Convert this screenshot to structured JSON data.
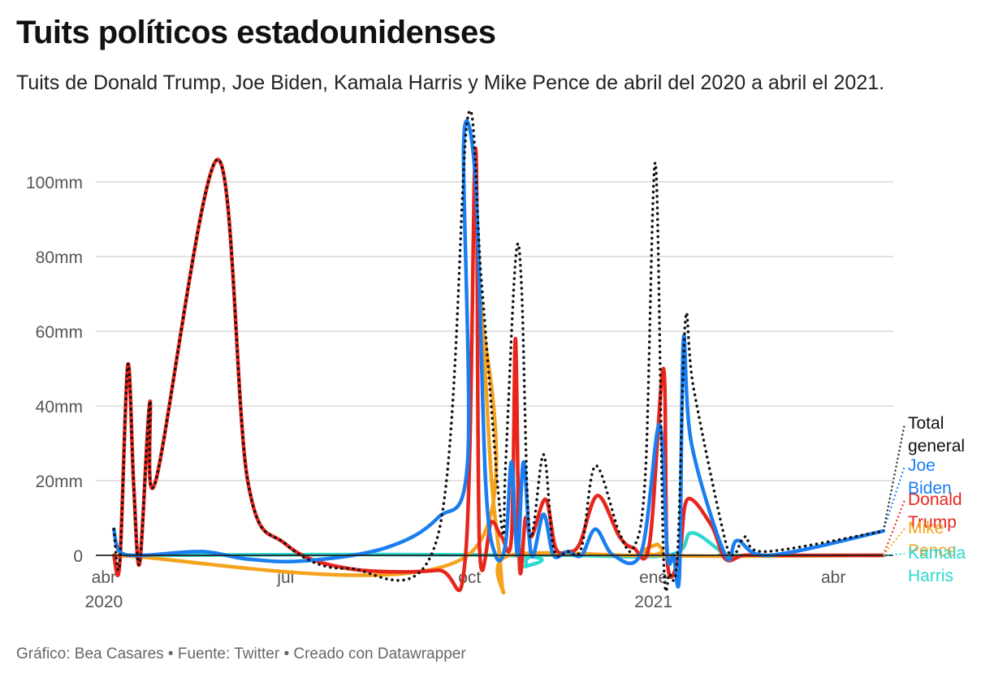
{
  "title": "Tuits políticos estadounidenses",
  "subtitle": "Tuits de Donald Trump, Joe Biden, Kamala Harris y Mike Pence de abril del 2020 a abril el 2021.",
  "footer": "Gráfico: Bea Casares • Fuente: Twitter • Creado con Datawrapper",
  "chart_data": {
    "type": "line",
    "x_type": "date",
    "y_unit": "mm",
    "ylim": [
      0,
      110000
    ],
    "yticks": [
      {
        "value": 0,
        "label": "0"
      },
      {
        "value": 20000,
        "label": "20mm"
      },
      {
        "value": 40000,
        "label": "40mm"
      },
      {
        "value": 60000,
        "label": "60mm"
      },
      {
        "value": 80000,
        "label": "80mm"
      },
      {
        "value": 100000,
        "label": "100mm"
      }
    ],
    "xticks": [
      {
        "date": "2020-04-01",
        "label": "abr",
        "sublabel": "2020"
      },
      {
        "date": "2020-07-01",
        "label": "jul",
        "sublabel": ""
      },
      {
        "date": "2020-10-01",
        "label": "oct",
        "sublabel": ""
      },
      {
        "date": "2021-01-01",
        "label": "ene",
        "sublabel": "2021"
      },
      {
        "date": "2021-04-01",
        "label": "abr",
        "sublabel": ""
      }
    ],
    "xlim": [
      "2020-03-28",
      "2021-05-01"
    ],
    "grid": true,
    "legend": "right-end labels",
    "series": [
      {
        "name": "Donald Trump",
        "legend_lines": [
          "Donald",
          "Trump"
        ],
        "color": "#e8251c",
        "style": "solid",
        "points": [
          [
            "2020-04-06",
            0
          ],
          [
            "2020-04-09",
            -2000
          ],
          [
            "2020-04-13",
            51000
          ],
          [
            "2020-04-16",
            18000
          ],
          [
            "2020-04-19",
            -2000
          ],
          [
            "2020-04-24",
            41000
          ],
          [
            "2020-04-27",
            20000
          ],
          [
            "2020-05-28",
            106000
          ],
          [
            "2020-06-12",
            20000
          ],
          [
            "2020-07-01",
            3000
          ],
          [
            "2020-08-01",
            -3500
          ],
          [
            "2020-09-15",
            -4000
          ],
          [
            "2020-09-29",
            0
          ],
          [
            "2020-10-04",
            109000
          ],
          [
            "2020-10-06",
            2000
          ],
          [
            "2020-10-12",
            9000
          ],
          [
            "2020-10-17",
            5000
          ],
          [
            "2020-10-22",
            5000
          ],
          [
            "2020-10-24",
            58000
          ],
          [
            "2020-10-26",
            -3000
          ],
          [
            "2020-10-29",
            10000
          ],
          [
            "2020-11-01",
            5000
          ],
          [
            "2020-11-08",
            15000
          ],
          [
            "2020-11-13",
            2000
          ],
          [
            "2020-11-19",
            1000
          ],
          [
            "2020-11-25",
            3000
          ],
          [
            "2020-12-04",
            16000
          ],
          [
            "2020-12-15",
            5000
          ],
          [
            "2020-12-22",
            2000
          ],
          [
            "2020-12-30",
            3000
          ],
          [
            "2021-01-06",
            50000
          ],
          [
            "2021-01-08",
            -2000
          ],
          [
            "2021-01-14",
            0
          ],
          [
            "2021-01-18",
            15000
          ],
          [
            "2021-01-30",
            8000
          ],
          [
            "2021-02-06",
            -1000
          ],
          [
            "2021-02-15",
            0
          ],
          [
            "2021-03-01",
            0
          ],
          [
            "2021-04-26",
            0
          ]
        ]
      },
      {
        "name": "Joe Biden",
        "legend_lines": [
          "Joe",
          "Biden"
        ],
        "color": "#1a7ef0",
        "style": "solid",
        "points": [
          [
            "2020-04-06",
            7000
          ],
          [
            "2020-04-09",
            1000
          ],
          [
            "2020-04-20",
            0
          ],
          [
            "2020-05-20",
            1000
          ],
          [
            "2020-06-12",
            -1000
          ],
          [
            "2020-07-10",
            -1500
          ],
          [
            "2020-08-20",
            2000
          ],
          [
            "2020-09-15",
            10000
          ],
          [
            "2020-09-30",
            25000
          ],
          [
            "2020-09-28",
            110000
          ],
          [
            "2020-10-04",
            100000
          ],
          [
            "2020-10-09",
            20000
          ],
          [
            "2020-10-14",
            0
          ],
          [
            "2020-10-19",
            3000
          ],
          [
            "2020-10-22",
            25000
          ],
          [
            "2020-10-25",
            0
          ],
          [
            "2020-10-28",
            25000
          ],
          [
            "2020-11-01",
            0
          ],
          [
            "2020-11-07",
            11000
          ],
          [
            "2020-11-12",
            0
          ],
          [
            "2020-11-19",
            1000
          ],
          [
            "2020-11-26",
            0
          ],
          [
            "2020-12-03",
            7000
          ],
          [
            "2020-12-12",
            0
          ],
          [
            "2020-12-26",
            1000
          ],
          [
            "2021-01-04",
            35000
          ],
          [
            "2021-01-08",
            0
          ],
          [
            "2021-01-11",
            0
          ],
          [
            "2021-01-14",
            -5000
          ],
          [
            "2021-01-16",
            58000
          ],
          [
            "2021-01-20",
            30000
          ],
          [
            "2021-02-06",
            0
          ],
          [
            "2021-02-12",
            4000
          ],
          [
            "2021-02-28",
            0
          ],
          [
            "2021-04-26",
            6500
          ]
        ]
      },
      {
        "name": "Mike Pence",
        "legend_lines": [
          "Mike",
          "Pence"
        ],
        "color": "#f5a21d",
        "style": "solid",
        "points": [
          [
            "2020-04-06",
            0
          ],
          [
            "2020-09-30",
            0
          ],
          [
            "2020-10-05",
            72000
          ],
          [
            "2020-10-12",
            20000
          ],
          [
            "2020-10-16",
            0
          ],
          [
            "2020-10-18",
            -10000
          ],
          [
            "2020-10-21",
            0
          ],
          [
            "2020-12-30",
            0
          ],
          [
            "2021-01-03",
            3000
          ],
          [
            "2021-01-05",
            0
          ],
          [
            "2021-04-26",
            0
          ]
        ]
      },
      {
        "name": "Kamala Harris",
        "legend_lines": [
          "Kamala",
          "Harris"
        ],
        "color": "#2cd9d1",
        "style": "solid",
        "points": [
          [
            "2020-04-06",
            0
          ],
          [
            "2020-10-20",
            0
          ],
          [
            "2020-10-29",
            -3000
          ],
          [
            "2020-11-05",
            0
          ],
          [
            "2021-01-08",
            0
          ],
          [
            "2021-01-20",
            6000
          ],
          [
            "2021-02-04",
            1000
          ],
          [
            "2021-02-10",
            0
          ],
          [
            "2021-04-26",
            0
          ]
        ]
      },
      {
        "name": "Total general",
        "legend_lines": [
          "Total",
          "general"
        ],
        "color": "#111111",
        "style": "dotted",
        "points": [
          [
            "2020-04-06",
            7000
          ],
          [
            "2020-04-09",
            -2000
          ],
          [
            "2020-04-13",
            51000
          ],
          [
            "2020-04-16",
            18000
          ],
          [
            "2020-04-19",
            -2000
          ],
          [
            "2020-04-24",
            41000
          ],
          [
            "2020-04-27",
            20000
          ],
          [
            "2020-05-28",
            106000
          ],
          [
            "2020-06-12",
            20000
          ],
          [
            "2020-07-01",
            3000
          ],
          [
            "2020-08-01",
            -3500
          ],
          [
            "2020-09-15",
            5000
          ],
          [
            "2020-09-30",
            117000
          ],
          [
            "2020-10-07",
            73000
          ],
          [
            "2020-10-17",
            8000
          ],
          [
            "2020-10-19",
            24000
          ],
          [
            "2020-10-24",
            79000
          ],
          [
            "2020-10-27",
            72000
          ],
          [
            "2020-10-31",
            6000
          ],
          [
            "2020-11-07",
            27000
          ],
          [
            "2020-11-12",
            2000
          ],
          [
            "2020-11-19",
            1000
          ],
          [
            "2020-11-26",
            2000
          ],
          [
            "2020-12-03",
            24000
          ],
          [
            "2020-12-15",
            6000
          ],
          [
            "2020-12-22",
            2000
          ],
          [
            "2020-12-28",
            22000
          ],
          [
            "2021-01-02",
            105000
          ],
          [
            "2021-01-06",
            0
          ],
          [
            "2021-01-09",
            -5000
          ],
          [
            "2021-01-13",
            0
          ],
          [
            "2021-01-17",
            63000
          ],
          [
            "2021-01-21",
            45000
          ],
          [
            "2021-02-05",
            6000
          ],
          [
            "2021-02-10",
            0
          ],
          [
            "2021-02-16",
            5000
          ],
          [
            "2021-02-26",
            1000
          ],
          [
            "2021-04-26",
            6500
          ]
        ],
        "legend_leader": 35000
      }
    ]
  }
}
